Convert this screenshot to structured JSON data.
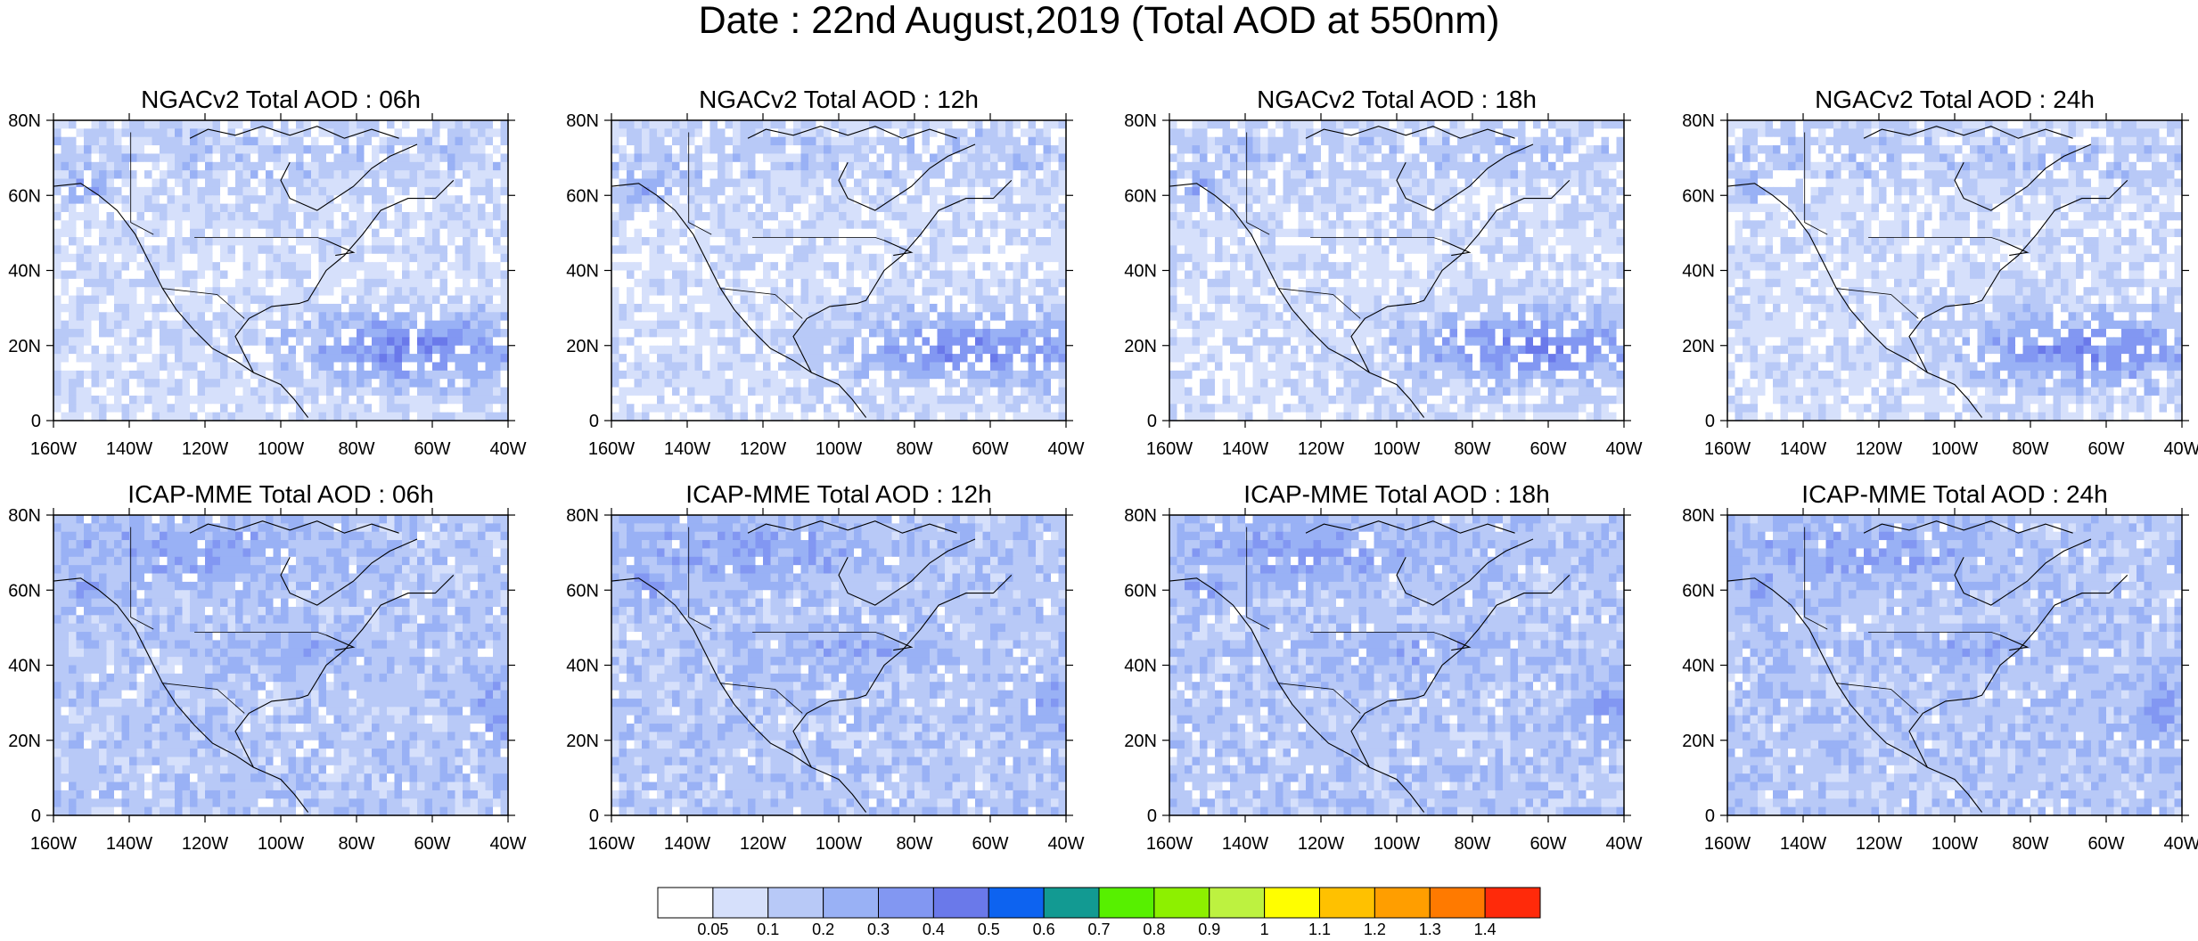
{
  "title": "Date : 22nd August,2019 (Total AOD at 550nm)",
  "panels": [
    {
      "id": "ngac-06",
      "title": "NGACv2 Total AOD : 06h",
      "model": "ngac"
    },
    {
      "id": "ngac-12",
      "title": "NGACv2 Total AOD : 12h",
      "model": "ngac"
    },
    {
      "id": "ngac-18",
      "title": "NGACv2 Total AOD : 18h",
      "model": "ngac"
    },
    {
      "id": "ngac-24",
      "title": "NGACv2 Total AOD : 24h",
      "model": "ngac"
    },
    {
      "id": "icap-06",
      "title": "ICAP-MME Total AOD : 06h",
      "model": "icap"
    },
    {
      "id": "icap-12",
      "title": "ICAP-MME Total AOD : 12h",
      "model": "icap"
    },
    {
      "id": "icap-18",
      "title": "ICAP-MME Total AOD : 18h",
      "model": "icap"
    },
    {
      "id": "icap-24",
      "title": "ICAP-MME Total AOD : 24h",
      "model": "icap"
    }
  ],
  "lat_ticks": [
    "80N",
    "60N",
    "40N",
    "20N",
    "0"
  ],
  "lon_ticks": [
    "160W",
    "140W",
    "120W",
    "100W",
    "80W",
    "60W",
    "40W"
  ],
  "colorbar": {
    "labels": [
      "0.05",
      "0.1",
      "0.2",
      "0.3",
      "0.4",
      "0.5",
      "0.6",
      "0.7",
      "0.8",
      "0.9",
      "1",
      "1.1",
      "1.2",
      "1.3",
      "1.4"
    ],
    "colors": [
      "#ffffff",
      "#d6e0fb",
      "#b8c9f7",
      "#99b1f5",
      "#8297f2",
      "#6a79ea",
      "#0d63f0",
      "#129a92",
      "#57f000",
      "#8df000",
      "#bdf240",
      "#fffe00",
      "#ffc100",
      "#ff9e00",
      "#ff7a00",
      "#ff2a0a"
    ]
  }
}
